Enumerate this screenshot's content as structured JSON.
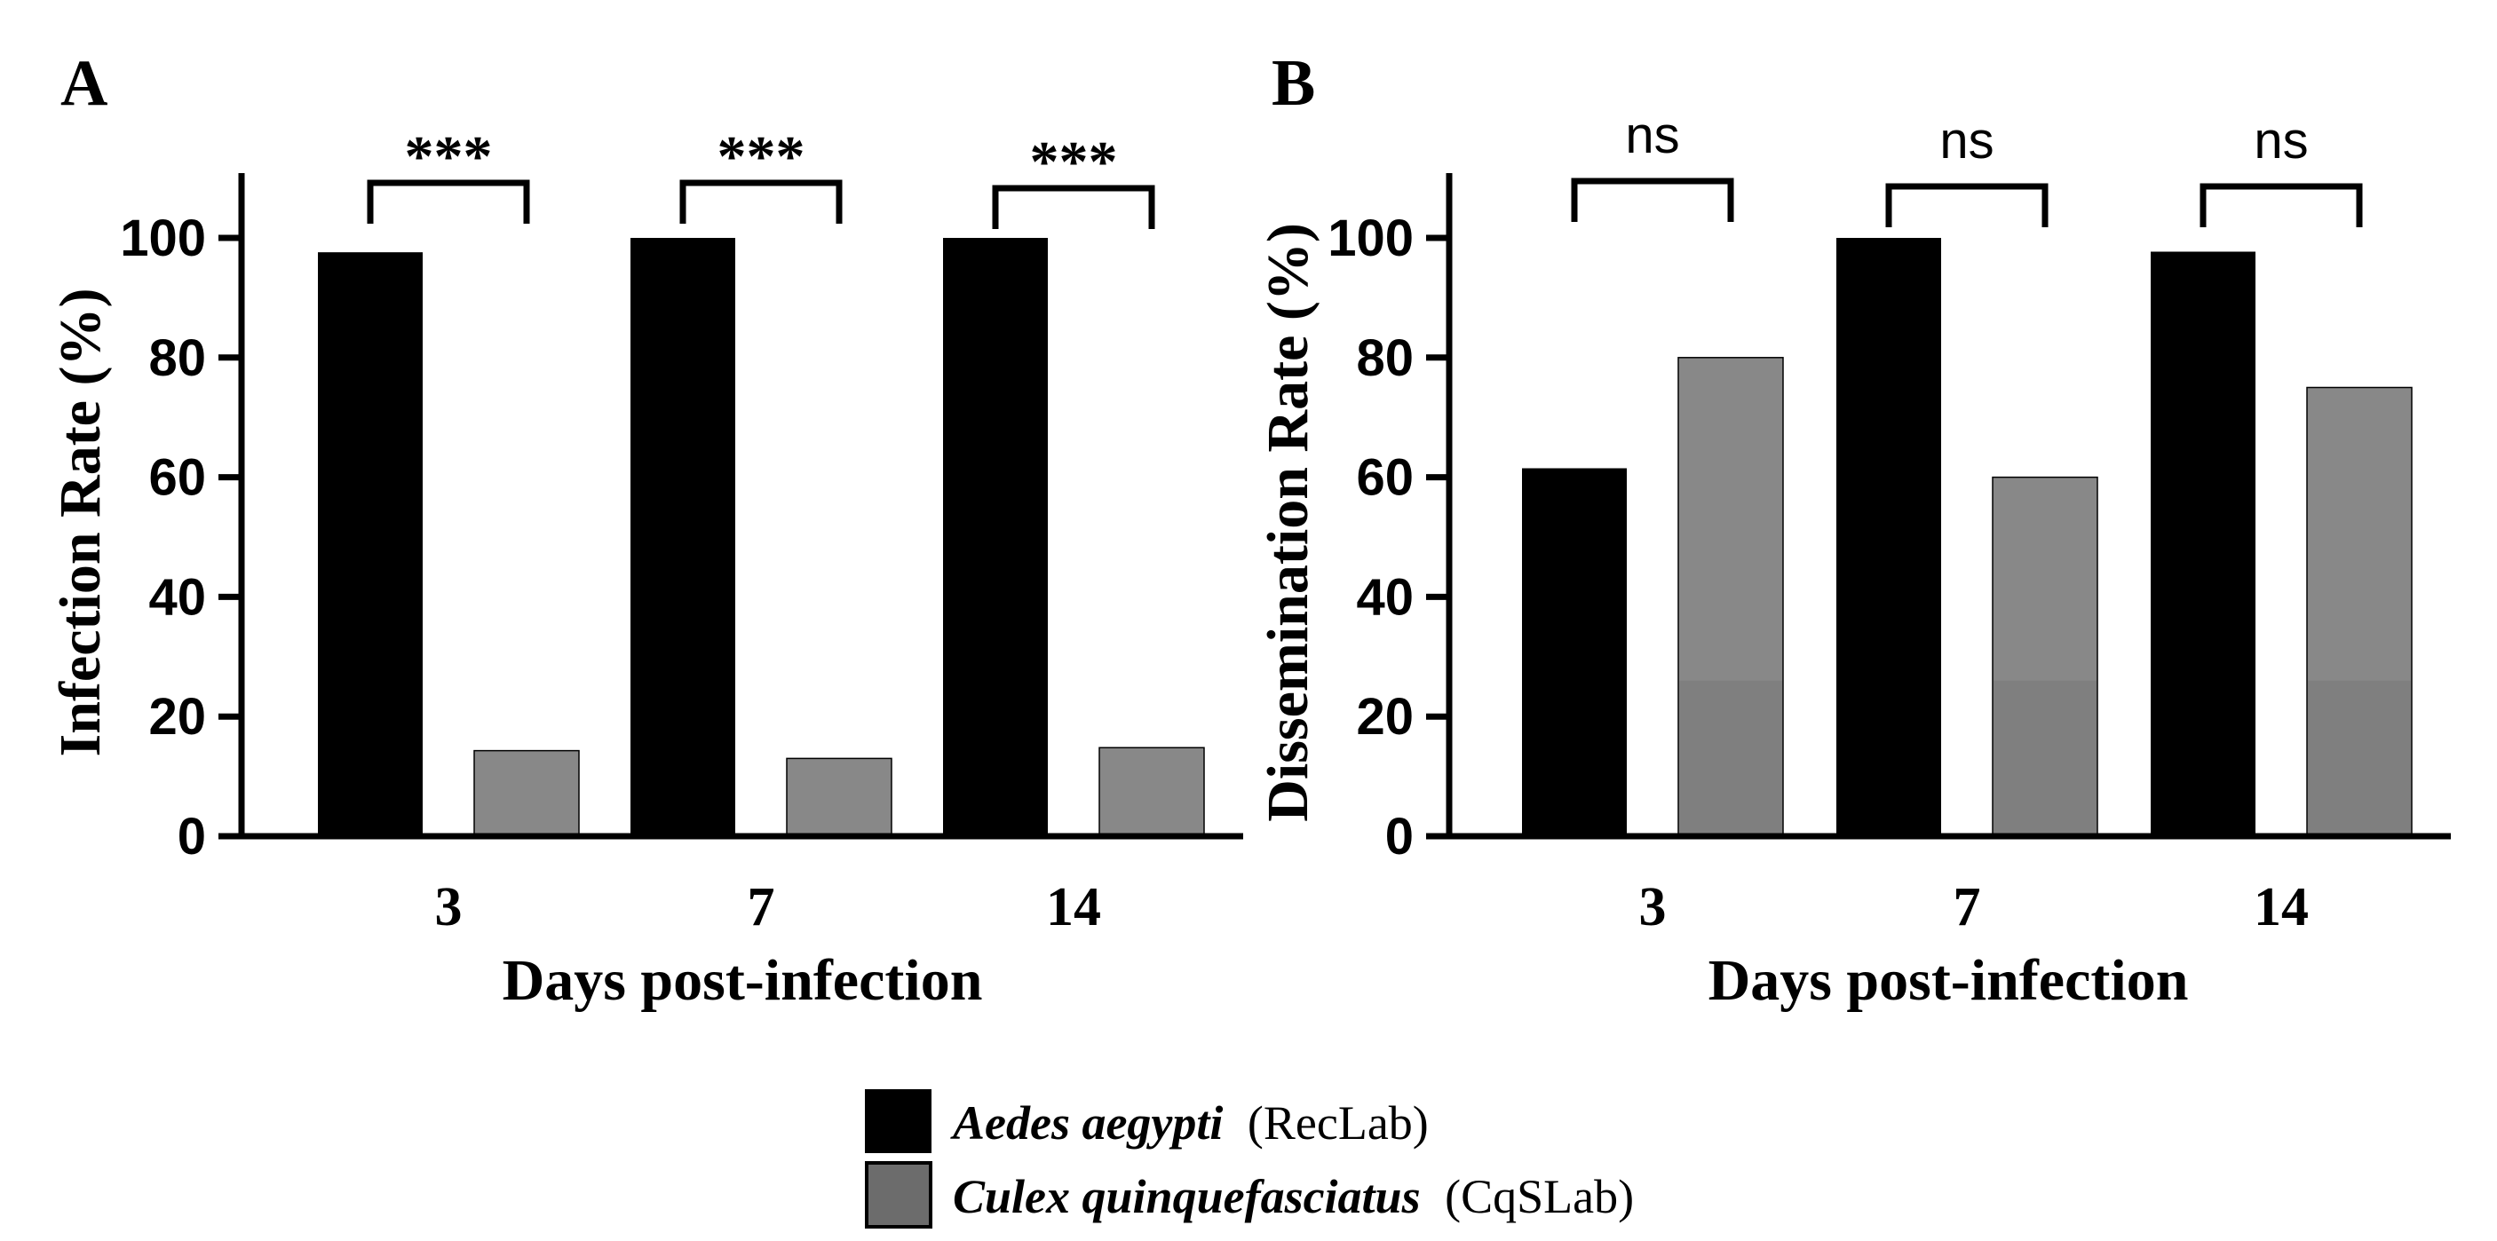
{
  "legend": {
    "aedes_species": "Aedes aegypti",
    "aedes_strain": "(RecLab)",
    "culex_species": "Culex quinquefasciatus",
    "culex_strain": "(CqSLab)"
  },
  "colors": {
    "aedes": "#000000",
    "culex": "#888888",
    "culex_legend": "#6c6c6c",
    "culex_lower": "#7f7f7f"
  },
  "chart_data": [
    {
      "type": "bar",
      "panel_label": "A",
      "title": "",
      "xlabel": "Days post-infection",
      "ylabel": "Infection Rate (%)",
      "categories": [
        "3",
        "7",
        "14"
      ],
      "yticks": [
        "0",
        "20",
        "40",
        "60",
        "80",
        "100"
      ],
      "ylim": [
        0,
        110
      ],
      "series": [
        {
          "name": "Aedes aegypti (RecLab)",
          "values": [
            97.6,
            100,
            100
          ]
        },
        {
          "name": "Culex quinquefasciatus (CqSLab)",
          "values": [
            14.3,
            13,
            14.8
          ]
        }
      ],
      "significance": [
        "***",
        "***",
        "***"
      ]
    },
    {
      "type": "bar",
      "panel_label": "B",
      "title": "",
      "xlabel": "Days post-infection",
      "ylabel": "Dissemination Rate (%)",
      "categories": [
        "3",
        "7",
        "14"
      ],
      "yticks": [
        "0",
        "20",
        "40",
        "60",
        "80",
        "100"
      ],
      "ylim": [
        0,
        110
      ],
      "series": [
        {
          "name": "Aedes aegypti (RecLab)",
          "values": [
            61.5,
            100,
            97.7
          ]
        },
        {
          "name": "Culex quinquefasciatus (CqSLab)",
          "values": [
            80,
            60,
            75
          ]
        }
      ],
      "significance": [
        "ns",
        "ns",
        "ns"
      ]
    }
  ]
}
